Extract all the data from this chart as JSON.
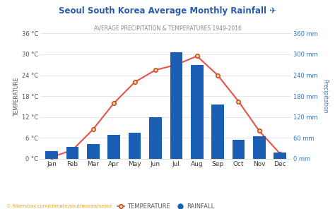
{
  "title": "Seoul South Korea Average Monthly Rainfall ✈",
  "subtitle": "AVERAGE PRECIPITATION & TEMPERATURES 1949-2016",
  "months": [
    "Jan",
    "Feb",
    "Mar",
    "Apr",
    "May",
    "Jun",
    "Jul",
    "Aug",
    "Sep",
    "Oct",
    "Nov",
    "Dec"
  ],
  "temperature_c": [
    0.5,
    2.5,
    8.5,
    16.0,
    22.0,
    25.5,
    27.0,
    29.5,
    24.0,
    16.5,
    8.0,
    1.5
  ],
  "rainfall_mm": [
    22,
    35,
    42,
    68,
    75,
    120,
    305,
    270,
    155,
    55,
    65,
    18
  ],
  "bar_color": "#1a5fb4",
  "line_color": "#e8524a",
  "marker_face": "#f5d76e",
  "marker_edge": "#c0392b",
  "temp_ylim": [
    0,
    36
  ],
  "rain_ylim": [
    0,
    360
  ],
  "temp_ticks": [
    0,
    6,
    12,
    18,
    24,
    30,
    36
  ],
  "rain_ticks": [
    0,
    60,
    120,
    180,
    240,
    300,
    360
  ],
  "temp_tick_labels": [
    "0 °C",
    "6 °C",
    "12 °C",
    "18 °C",
    "24 °C",
    "30 °C",
    "36 °C"
  ],
  "rain_tick_labels": [
    "0 mm",
    "60 mm",
    "120 mm",
    "180 mm",
    "240 mm",
    "300 mm",
    "360 mm"
  ],
  "ylabel_left": "TEMPERATURE",
  "ylabel_right": "Precipitation",
  "bg_color": "#ffffff",
  "grid_color": "#dddddd",
  "footer": "☉ hikersbay.com/climate/southkorea/seoul",
  "title_color": "#2a5caa",
  "subtitle_color": "#888888",
  "right_axis_color": "#2a7acc",
  "left_axis_color": "#555555",
  "title_fontsize": 8.5,
  "subtitle_fontsize": 5.5,
  "tick_fontsize": 6,
  "xlabel_fontsize": 6.5
}
